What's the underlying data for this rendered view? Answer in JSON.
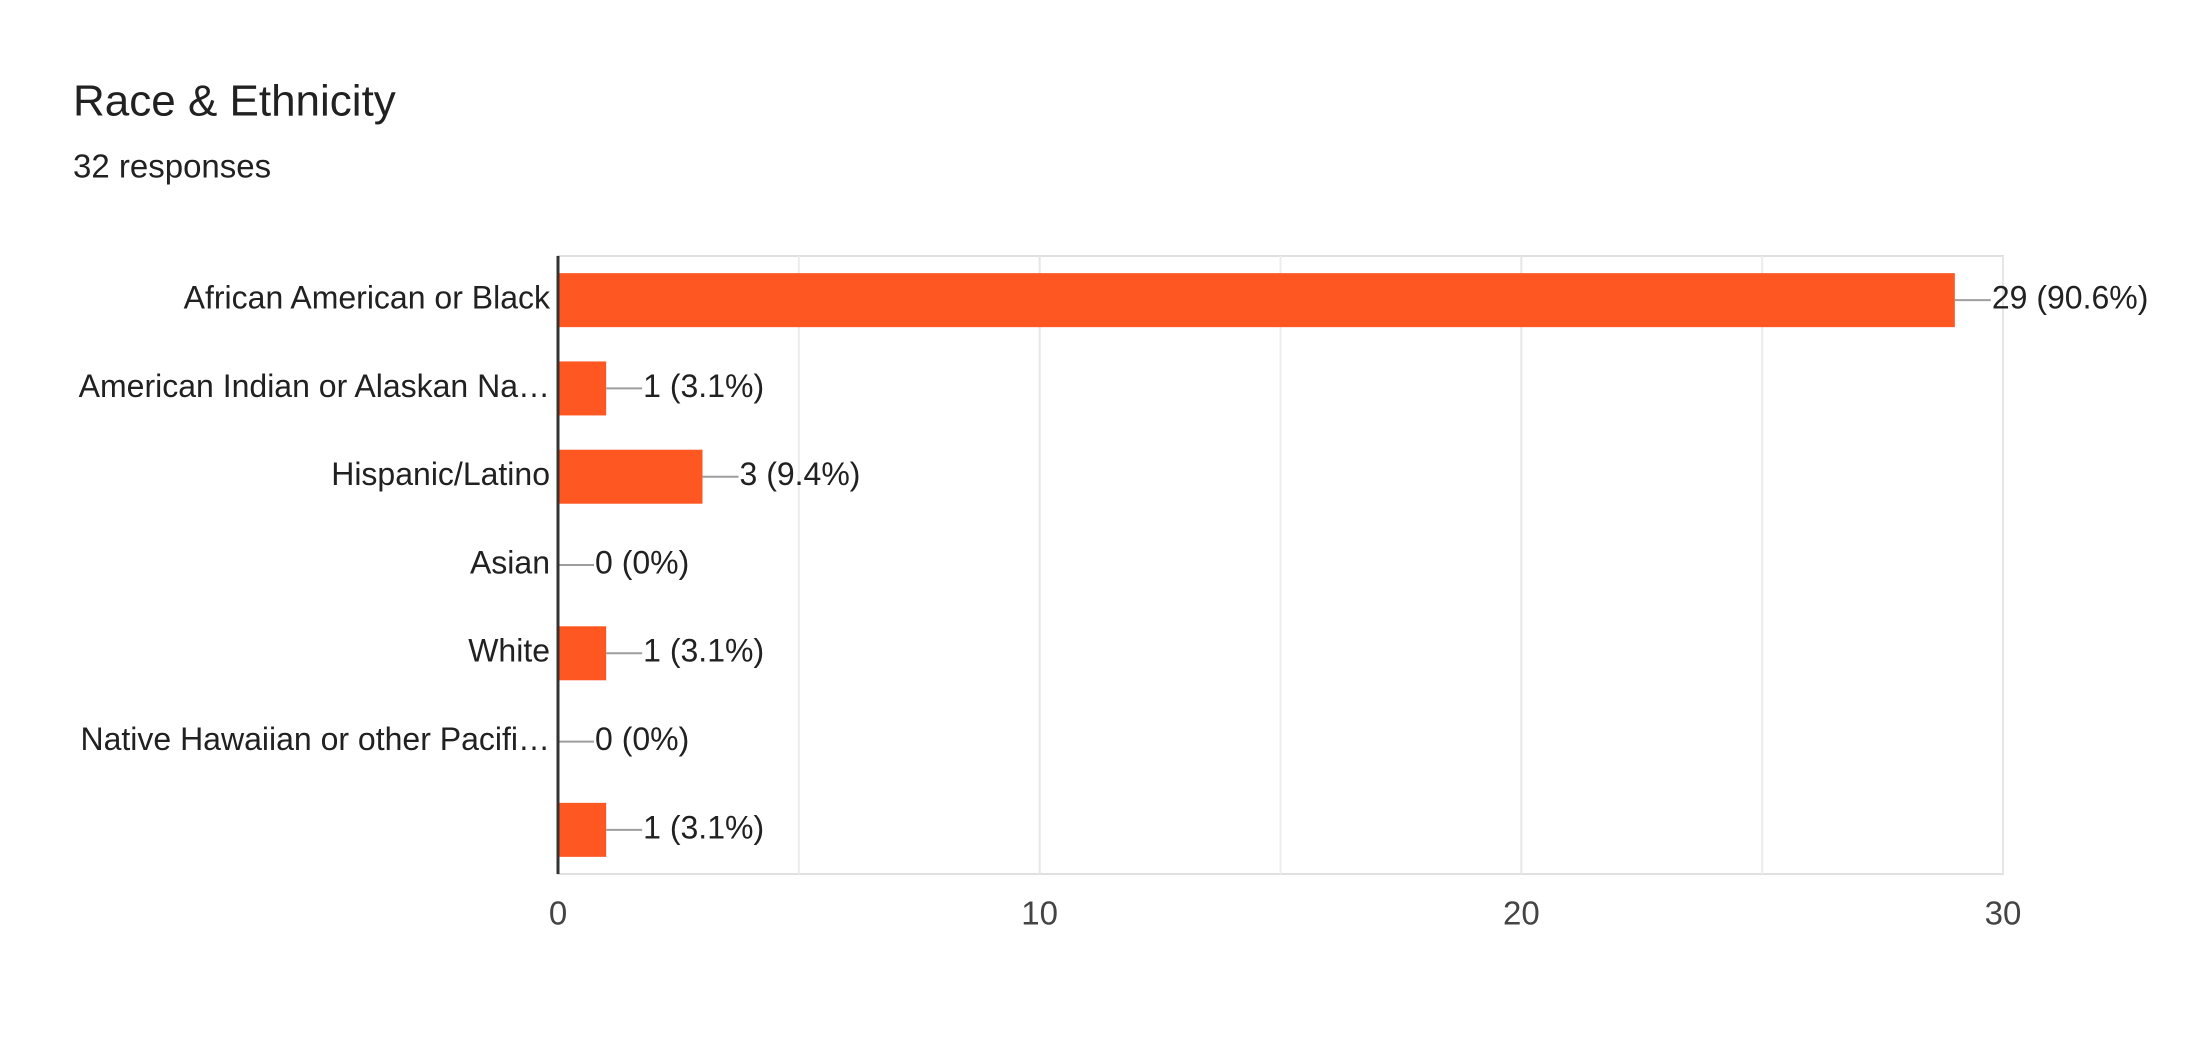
{
  "chart_data": {
    "type": "bar",
    "orientation": "horizontal",
    "title": "Race & Ethnicity",
    "subtitle": "32 responses",
    "categories": [
      "African American or Black",
      "American Indian or Alaskan Na…",
      "Hispanic/Latino",
      "Asian",
      "White",
      "Native Hawaiian or other Pacifi…",
      null
    ],
    "values": [
      29,
      1,
      3,
      0,
      1,
      0,
      1
    ],
    "value_labels": [
      "29 (90.6%)",
      "1 (3.1%)",
      "3 (9.4%)",
      "0 (0%)",
      "1 (3.1%)",
      "0 (0%)",
      "1 (3.1%)"
    ],
    "color": "#ff5722",
    "xlim": [
      0,
      30
    ],
    "xticks": [
      0,
      10,
      20,
      30
    ],
    "minor_gridlines": [
      5,
      15,
      25
    ],
    "grid": true
  }
}
